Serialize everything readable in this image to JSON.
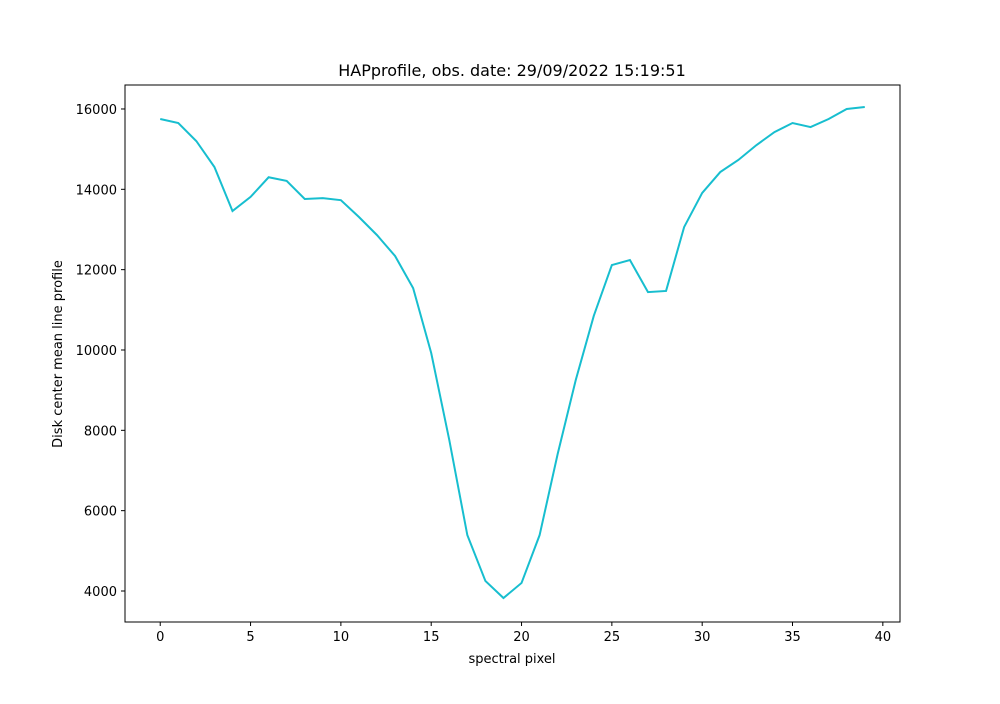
{
  "chart_data": {
    "type": "line",
    "title": "HAPprofile, obs. date: 29/09/2022 15:19:51",
    "x_label": "spectral pixel",
    "y_label": "Disk center mean line profile",
    "x": [
      0,
      1,
      2,
      3,
      4,
      5,
      6,
      7,
      8,
      9,
      10,
      11,
      12,
      13,
      14,
      15,
      16,
      17,
      18,
      19,
      20,
      21,
      22,
      23,
      24,
      25,
      26,
      27,
      28,
      29,
      30,
      31,
      32,
      33,
      34,
      35,
      36,
      37,
      38,
      39
    ],
    "series": [
      {
        "color": "#17becf",
        "values": [
          15750,
          15650,
          15200,
          14555,
          13460,
          13810,
          14300,
          14210,
          13760,
          13780,
          13730,
          13310,
          12860,
          12340,
          11540,
          9925,
          7760,
          5390,
          4250,
          3825,
          4200,
          5390,
          7410,
          9250,
          10850,
          12115,
          12240,
          11440,
          11470,
          13060,
          13910,
          14430,
          14730,
          15100,
          15425,
          15650,
          15550,
          15750,
          16000,
          16050
        ]
      }
    ],
    "xlim": [
      -1.95,
      40.95
    ],
    "xticks": [
      0,
      5,
      10,
      15,
      20,
      25,
      30,
      35,
      40
    ],
    "ylim": [
      3228,
      16597
    ],
    "yticks": [
      4000,
      6000,
      8000,
      10000,
      12000,
      14000,
      16000
    ]
  }
}
